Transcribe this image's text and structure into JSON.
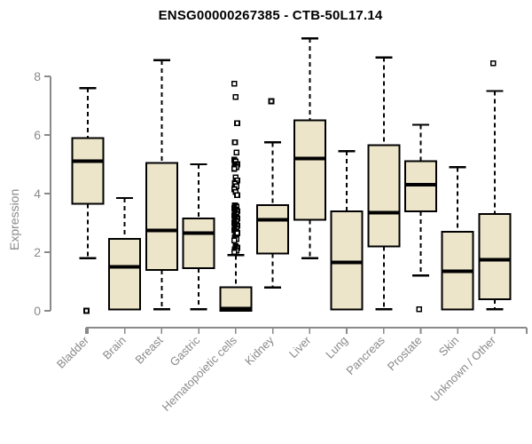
{
  "chart_data": {
    "type": "boxplot",
    "title": "ENSG00000267385 - CTB-50L17.14",
    "ylabel": "Expression",
    "xlabel": "",
    "ylim": [
      0,
      9.4
    ],
    "yticks": [
      0,
      2,
      4,
      6,
      8
    ],
    "grid": false,
    "legend": false,
    "categories": [
      "Bladder",
      "Brain",
      "Breast",
      "Gastric",
      "Hematopoietic cells",
      "Kidney",
      "Liver",
      "Lung",
      "Pancreas",
      "Prostate",
      "Skin",
      "Unknown / Other"
    ],
    "boxes": [
      {
        "category": "Bladder",
        "whisker_low": 1.8,
        "q1": 3.65,
        "median": 5.1,
        "q3": 5.9,
        "whisker_high": 7.6,
        "outliers": [
          0.0
        ]
      },
      {
        "category": "Brain",
        "whisker_low": 0.05,
        "q1": 0.05,
        "median": 1.5,
        "q3": 2.45,
        "whisker_high": 3.85,
        "outliers": []
      },
      {
        "category": "Breast",
        "whisker_low": 0.05,
        "q1": 1.4,
        "median": 2.75,
        "q3": 5.05,
        "whisker_high": 8.55,
        "outliers": []
      },
      {
        "category": "Gastric",
        "whisker_low": 0.05,
        "q1": 1.45,
        "median": 2.65,
        "q3": 3.15,
        "whisker_high": 5.0,
        "outliers": []
      },
      {
        "category": "Hematopoietic cells",
        "whisker_low": 0.0,
        "q1": 0.0,
        "median": 0.08,
        "q3": 0.8,
        "whisker_high": 1.9,
        "outliers": [
          7.75,
          7.3,
          6.4,
          5.75,
          5.4,
          5.15,
          5.1,
          5.0,
          4.95,
          4.9,
          4.85,
          4.55,
          4.45,
          4.35,
          4.25,
          4.15,
          4.05,
          3.95,
          3.6,
          3.55,
          3.5,
          3.45,
          3.4,
          3.35,
          3.3,
          3.25,
          3.2,
          3.15,
          3.1,
          3.05,
          3.0,
          2.95,
          2.9,
          2.85,
          2.8,
          2.75,
          2.7,
          2.65,
          2.5,
          2.45,
          2.4,
          2.2,
          2.15,
          2.1,
          2.05,
          2.0
        ]
      },
      {
        "category": "Kidney",
        "whisker_low": 0.8,
        "q1": 1.95,
        "median": 3.1,
        "q3": 3.6,
        "whisker_high": 5.75,
        "outliers": [
          7.15
        ]
      },
      {
        "category": "Liver",
        "whisker_low": 1.8,
        "q1": 3.1,
        "median": 5.2,
        "q3": 6.5,
        "whisker_high": 9.3,
        "outliers": []
      },
      {
        "category": "Lung",
        "whisker_low": 0.05,
        "q1": 0.05,
        "median": 1.65,
        "q3": 3.4,
        "whisker_high": 5.45,
        "outliers": []
      },
      {
        "category": "Pancreas",
        "whisker_low": 0.05,
        "q1": 2.2,
        "median": 3.35,
        "q3": 5.65,
        "whisker_high": 8.65,
        "outliers": []
      },
      {
        "category": "Prostate",
        "whisker_low": 1.2,
        "q1": 3.4,
        "median": 4.3,
        "q3": 5.1,
        "whisker_high": 6.35,
        "outliers": [
          0.05
        ]
      },
      {
        "category": "Skin",
        "whisker_low": 0.05,
        "q1": 0.05,
        "median": 1.35,
        "q3": 2.7,
        "whisker_high": 4.9,
        "outliers": []
      },
      {
        "category": "Unknown / Other",
        "whisker_low": 0.05,
        "q1": 0.4,
        "median": 1.75,
        "q3": 3.3,
        "whisker_high": 7.5,
        "outliers": [
          8.45
        ]
      }
    ],
    "colors": {
      "box_fill": "#ECE5C9",
      "box_border": "#000000",
      "median": "#000000",
      "whisker": "#000000",
      "axis": "#8A8A8A",
      "tick_label": "#8A8A8A",
      "title": "#000000",
      "background": "#FFFFFF"
    }
  }
}
